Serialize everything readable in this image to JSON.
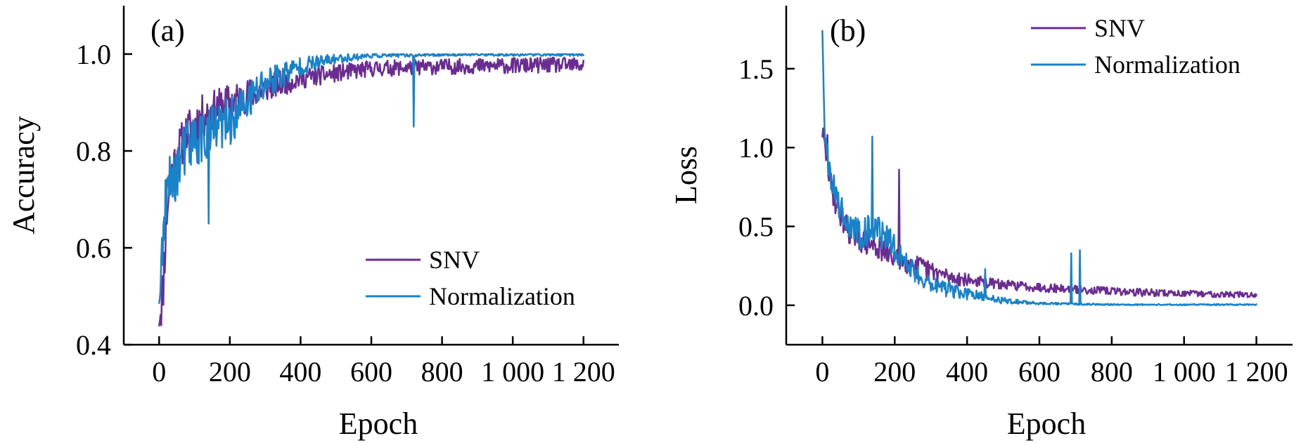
{
  "colors": {
    "snv": "#6a2c91",
    "normalization": "#1a82c8"
  },
  "chart_data": [
    {
      "type": "line",
      "panel_label": "(a)",
      "xlabel": "Epoch",
      "ylabel": "Accuracy",
      "xlim": [
        -100,
        1300
      ],
      "ylim": [
        0.4,
        1.1
      ],
      "xticks": [
        0,
        200,
        400,
        600,
        800,
        1000,
        1200
      ],
      "xtick_labels": [
        "0",
        "200",
        "400",
        "600",
        "800",
        "1 000",
        "1 200"
      ],
      "yticks": [
        0.4,
        0.6,
        0.8,
        1.0
      ],
      "ytick_labels": [
        "0.4",
        "0.6",
        "0.8",
        "1.0"
      ],
      "legend_position": "bottom-right",
      "noise_seed": 11,
      "series": [
        {
          "name": "SNV",
          "color": "#6a2c91",
          "x": [
            0,
            10,
            20,
            30,
            50,
            80,
            120,
            200,
            300,
            400,
            500,
            600,
            700,
            800,
            900,
            1000,
            1100,
            1200
          ],
          "y": [
            0.46,
            0.5,
            0.66,
            0.74,
            0.79,
            0.84,
            0.87,
            0.9,
            0.93,
            0.95,
            0.96,
            0.97,
            0.972,
            0.974,
            0.975,
            0.976,
            0.977,
            0.977
          ],
          "noise": [
            0.04,
            0.06,
            0.06,
            0.05,
            0.05,
            0.045,
            0.045,
            0.04,
            0.03,
            0.022,
            0.018,
            0.017,
            0.016,
            0.016,
            0.016,
            0.016,
            0.016,
            0.016
          ]
        },
        {
          "name": "Normalization",
          "color": "#1a82c8",
          "x": [
            0,
            10,
            20,
            30,
            50,
            80,
            120,
            200,
            300,
            400,
            500,
            600,
            700,
            800,
            900,
            1000,
            1100,
            1200
          ],
          "y": [
            0.5,
            0.6,
            0.7,
            0.73,
            0.76,
            0.81,
            0.83,
            0.86,
            0.94,
            0.975,
            0.99,
            0.997,
            0.998,
            0.999,
            0.999,
            0.999,
            0.999,
            0.999
          ],
          "noise": [
            0.05,
            0.06,
            0.06,
            0.06,
            0.06,
            0.06,
            0.06,
            0.05,
            0.04,
            0.02,
            0.01,
            0.005,
            0.004,
            0.003,
            0.003,
            0.003,
            0.003,
            0.003
          ],
          "spikes": [
            {
              "x": 720,
              "y": 0.85
            },
            {
              "x": 140,
              "y": 0.65
            }
          ]
        }
      ]
    },
    {
      "type": "line",
      "panel_label": "(b)",
      "xlabel": "Epoch",
      "ylabel": "Loss",
      "xlim": [
        -100,
        1300
      ],
      "ylim": [
        -0.25,
        1.9
      ],
      "xticks": [
        0,
        200,
        400,
        600,
        800,
        1000,
        1200
      ],
      "xtick_labels": [
        "0",
        "200",
        "400",
        "600",
        "800",
        "1 000",
        "1 200"
      ],
      "yticks": [
        0.0,
        0.5,
        1.0,
        1.5
      ],
      "ytick_labels": [
        "0.0",
        "0.5",
        "1.0",
        "1.5"
      ],
      "legend_position": "top-right",
      "noise_seed": 29,
      "series": [
        {
          "name": "SNV",
          "color": "#6a2c91",
          "x": [
            0,
            10,
            20,
            40,
            70,
            100,
            150,
            200,
            250,
            300,
            350,
            400,
            500,
            600,
            700,
            800,
            900,
            1000,
            1100,
            1200
          ],
          "y": [
            1.1,
            0.95,
            0.8,
            0.62,
            0.48,
            0.42,
            0.37,
            0.3,
            0.26,
            0.22,
            0.18,
            0.16,
            0.13,
            0.115,
            0.1,
            0.09,
            0.08,
            0.075,
            0.07,
            0.065
          ],
          "noise": [
            0.06,
            0.08,
            0.08,
            0.08,
            0.08,
            0.08,
            0.08,
            0.07,
            0.07,
            0.06,
            0.05,
            0.04,
            0.03,
            0.03,
            0.025,
            0.025,
            0.025,
            0.02,
            0.02,
            0.02
          ],
          "spikes": [
            {
              "x": 212,
              "y": 0.86
            },
            {
              "x": 14,
              "y": 1.08
            }
          ]
        },
        {
          "name": "Normalization",
          "color": "#1a82c8",
          "x": [
            0,
            5,
            15,
            30,
            60,
            100,
            140,
            180,
            220,
            260,
            300,
            350,
            400,
            450,
            500,
            550,
            600,
            700,
            800,
            900,
            1000,
            1100,
            1200
          ],
          "y": [
            1.72,
            1.2,
            0.95,
            0.75,
            0.55,
            0.45,
            0.5,
            0.42,
            0.3,
            0.2,
            0.14,
            0.1,
            0.07,
            0.05,
            0.03,
            0.02,
            0.012,
            0.008,
            0.005,
            0.004,
            0.004,
            0.004,
            0.004
          ],
          "noise": [
            0.05,
            0.1,
            0.1,
            0.1,
            0.1,
            0.1,
            0.1,
            0.09,
            0.08,
            0.07,
            0.06,
            0.05,
            0.04,
            0.03,
            0.02,
            0.012,
            0.008,
            0.006,
            0.004,
            0.004,
            0.004,
            0.004,
            0.004
          ],
          "spikes": [
            {
              "x": 138,
              "y": 1.07
            },
            {
              "x": 688,
              "y": 0.33
            },
            {
              "x": 712,
              "y": 0.35
            },
            {
              "x": 450,
              "y": 0.23
            }
          ]
        }
      ]
    }
  ]
}
